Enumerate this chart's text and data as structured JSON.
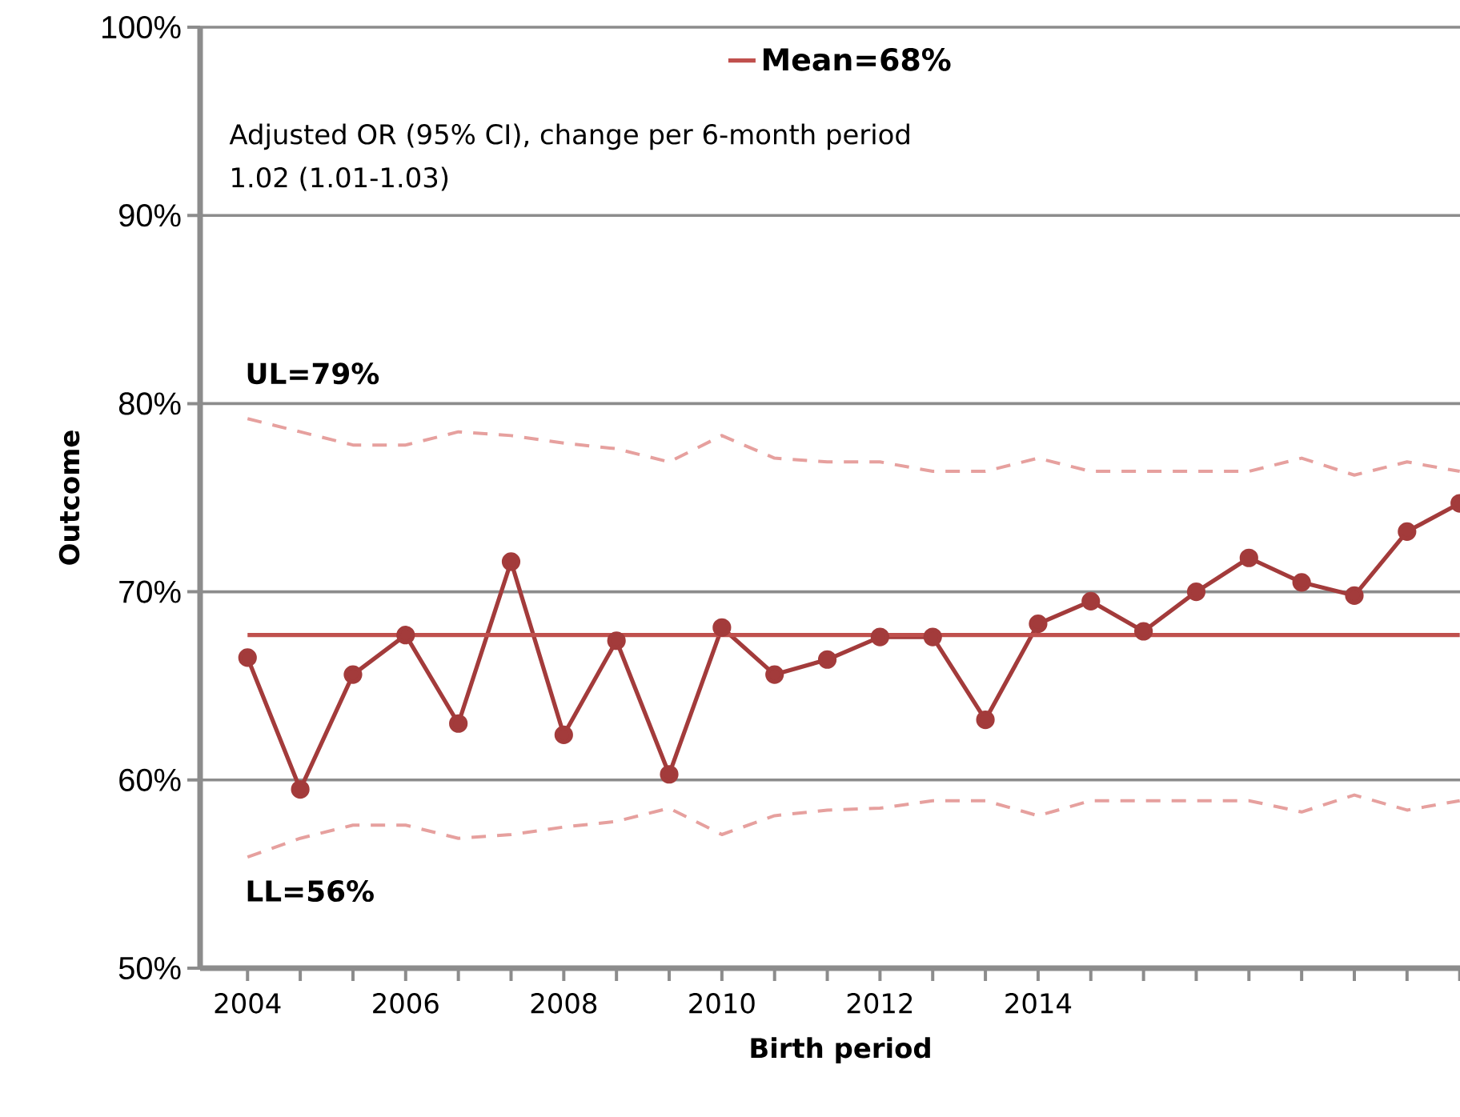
{
  "chart_data": {
    "type": "line",
    "xlabel": "Birth period",
    "ylabel": "Outcome",
    "categories": [
      "2004",
      null,
      null,
      "2006",
      null,
      null,
      "2008",
      null,
      null,
      "2010",
      null,
      null,
      "2012",
      null,
      null,
      "2014",
      null,
      null,
      null,
      null,
      null,
      null,
      null,
      null
    ],
    "series": [
      {
        "color": "#a33b3b",
        "marker": "circle",
        "line_style": "solid",
        "values": [
          66.5,
          59.5,
          65.6,
          67.7,
          63.0,
          71.6,
          62.4,
          67.4,
          60.3,
          68.1,
          65.6,
          66.4,
          67.6,
          67.6,
          63.2,
          68.3,
          69.5,
          67.9,
          70.0,
          71.8,
          70.5,
          69.8,
          73.2,
          74.7
        ]
      },
      {
        "name": "Mean=68%",
        "color": "#c0504d",
        "marker": "none",
        "line_style": "solid",
        "values": [
          67.7,
          67.7,
          67.7,
          67.7,
          67.7,
          67.7,
          67.7,
          67.7,
          67.7,
          67.7,
          67.7,
          67.7,
          67.7,
          67.7,
          67.7,
          67.7,
          67.7,
          67.7,
          67.7,
          67.7,
          67.7,
          67.7,
          67.7,
          67.7
        ]
      },
      {
        "color": "#e6a09e",
        "marker": "none",
        "line_style": "dashed",
        "values": [
          79.2,
          78.5,
          77.8,
          77.8,
          78.5,
          78.3,
          77.9,
          77.6,
          76.9,
          78.3,
          77.1,
          76.9,
          76.9,
          76.4,
          76.4,
          77.1,
          76.4,
          76.4,
          76.4,
          76.4,
          77.1,
          76.2,
          76.9,
          76.4
        ]
      },
      {
        "color": "#e6a09e",
        "marker": "none",
        "line_style": "dashed",
        "values": [
          55.9,
          56.9,
          57.6,
          57.6,
          56.9,
          57.1,
          57.5,
          57.8,
          58.5,
          57.1,
          58.1,
          58.4,
          58.5,
          58.9,
          58.9,
          58.1,
          58.9,
          58.9,
          58.9,
          58.9,
          58.3,
          59.2,
          58.4,
          58.9
        ]
      }
    ],
    "ylim": [
      50,
      100
    ],
    "yticks": [
      {
        "value": 50,
        "label": "50%"
      },
      {
        "value": 60,
        "label": "60%"
      },
      {
        "value": 70,
        "label": "70%"
      },
      {
        "value": 80,
        "label": "80%"
      },
      {
        "value": 90,
        "label": "90%"
      },
      {
        "value": 100,
        "label": "100%"
      }
    ],
    "grid": "y",
    "legend": "top",
    "annotations": [
      "Adjusted OR (95% CI), change per 6-month period",
      "1.02 (1.01-1.03)",
      "UL=79%",
      "LL=56%"
    ]
  }
}
